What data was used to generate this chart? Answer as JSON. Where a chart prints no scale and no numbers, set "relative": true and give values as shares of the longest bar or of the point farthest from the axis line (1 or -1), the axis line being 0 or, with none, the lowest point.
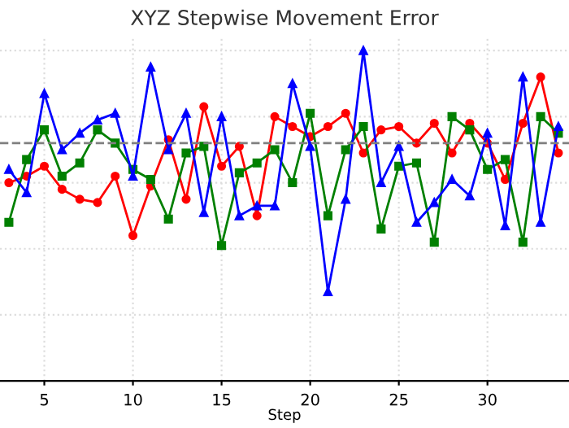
{
  "chart_data": {
    "type": "line",
    "title": "XYZ Stepwise Movement Error",
    "xlabel": "Step",
    "relative": true,
    "x": [
      3,
      4,
      5,
      6,
      7,
      8,
      9,
      10,
      11,
      12,
      13,
      14,
      15,
      16,
      17,
      18,
      19,
      20,
      21,
      22,
      23,
      24,
      25,
      26,
      27,
      28,
      29,
      30,
      31,
      32,
      33,
      34
    ],
    "xlim": [
      2.5,
      34.6
    ],
    "xticks": [
      5,
      10,
      15,
      20,
      25,
      30
    ],
    "grid": true,
    "line_style": "solid",
    "series": [
      {
        "color": "#ff0000",
        "marker": "circle",
        "values": [
          0.6,
          0.62,
          0.65,
          0.58,
          0.55,
          0.54,
          0.62,
          0.44,
          0.59,
          0.73,
          0.55,
          0.83,
          0.65,
          0.71,
          0.5,
          0.8,
          0.77,
          0.74,
          0.77,
          0.81,
          0.69,
          0.76,
          0.77,
          0.72,
          0.78,
          0.69,
          0.78,
          0.72,
          0.61,
          0.78,
          0.92,
          0.69
        ]
      },
      {
        "color": "#008000",
        "marker": "square",
        "values": [
          0.48,
          0.67,
          0.76,
          0.62,
          0.66,
          0.76,
          0.72,
          0.64,
          0.61,
          0.49,
          0.69,
          0.71,
          0.41,
          0.63,
          0.66,
          0.7,
          0.6,
          0.81,
          0.5,
          0.7,
          0.77,
          0.46,
          0.65,
          0.66,
          0.42,
          0.8,
          0.76,
          0.64,
          0.67,
          0.42,
          0.8,
          0.75
        ]
      },
      {
        "color": "#0000ff",
        "marker": "triangle",
        "values": [
          0.64,
          0.57,
          0.87,
          0.7,
          0.75,
          0.79,
          0.81,
          0.62,
          0.95,
          0.7,
          0.81,
          0.51,
          0.8,
          0.5,
          0.53,
          0.53,
          0.9,
          0.71,
          0.27,
          0.55,
          1,
          0.6,
          0.71,
          0.48,
          0.54,
          0.61,
          0.56,
          0.75,
          0.47,
          0.92,
          0.48,
          0.77
        ]
      }
    ],
    "ref_lines": [
      {
        "axis": "y",
        "value": 0.72,
        "color": "#808080",
        "line_style": "dashed"
      }
    ]
  }
}
